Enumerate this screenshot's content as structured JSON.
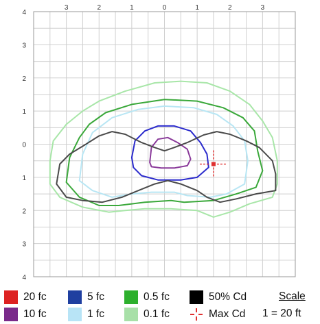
{
  "chart_data": {
    "type": "isofootcandle_plot",
    "x_ticks": [
      "3",
      "2",
      "1",
      "0",
      "1",
      "2",
      "3"
    ],
    "y_ticks": [
      "4",
      "3",
      "2",
      "1",
      "0",
      "1",
      "2",
      "3",
      "4"
    ],
    "xlim": [
      -4,
      4
    ],
    "ylim": [
      -4,
      4
    ],
    "grid": "on",
    "contours": [
      {
        "name": "0.1 fc",
        "color": "#a8e6a8",
        "points": [
          [
            -3.5,
            -1.2
          ],
          [
            -3.5,
            -0.5
          ],
          [
            -3.4,
            0.1
          ],
          [
            -3.0,
            0.6
          ],
          [
            -2.5,
            1.0
          ],
          [
            -2.0,
            1.3
          ],
          [
            -1.2,
            1.6
          ],
          [
            -0.3,
            1.85
          ],
          [
            0.5,
            1.9
          ],
          [
            1.3,
            1.85
          ],
          [
            2.0,
            1.6
          ],
          [
            2.6,
            1.2
          ],
          [
            3.0,
            0.7
          ],
          [
            3.3,
            0.2
          ],
          [
            3.45,
            -0.5
          ],
          [
            3.45,
            -1.2
          ],
          [
            3.3,
            -1.6
          ],
          [
            2.6,
            -1.8
          ],
          [
            2.0,
            -2.05
          ],
          [
            1.5,
            -2.2
          ],
          [
            1.0,
            -2.0
          ],
          [
            0.2,
            -1.95
          ],
          [
            -0.6,
            -1.95
          ],
          [
            -1.2,
            -2.0
          ],
          [
            -1.7,
            -2.05
          ],
          [
            -2.5,
            -1.9
          ],
          [
            -3.2,
            -1.6
          ],
          [
            -3.5,
            -1.2
          ]
        ]
      },
      {
        "name": "0.5 fc",
        "color": "#3aa83a",
        "points": [
          [
            -3.0,
            -1.15
          ],
          [
            -2.9,
            -0.4
          ],
          [
            -2.6,
            0.2
          ],
          [
            -2.3,
            0.6
          ],
          [
            -1.8,
            0.95
          ],
          [
            -1.0,
            1.2
          ],
          [
            0.0,
            1.35
          ],
          [
            1.0,
            1.3
          ],
          [
            1.8,
            1.1
          ],
          [
            2.4,
            0.8
          ],
          [
            2.75,
            0.4
          ],
          [
            2.85,
            -0.2
          ],
          [
            3.0,
            -0.8
          ],
          [
            2.8,
            -1.3
          ],
          [
            2.2,
            -1.5
          ],
          [
            1.5,
            -1.7
          ],
          [
            0.6,
            -1.75
          ],
          [
            0.2,
            -1.7
          ],
          [
            -0.6,
            -1.75
          ],
          [
            -1.4,
            -1.85
          ],
          [
            -2.0,
            -1.85
          ],
          [
            -2.6,
            -1.6
          ],
          [
            -3.0,
            -1.15
          ]
        ]
      },
      {
        "name": "1 fc",
        "color": "#b8e6f4",
        "points": [
          [
            -2.6,
            -1.1
          ],
          [
            -2.5,
            -0.3
          ],
          [
            -2.2,
            0.35
          ],
          [
            -1.6,
            0.8
          ],
          [
            -0.8,
            1.05
          ],
          [
            0.0,
            1.15
          ],
          [
            0.9,
            1.1
          ],
          [
            1.6,
            0.9
          ],
          [
            2.1,
            0.55
          ],
          [
            2.45,
            0.1
          ],
          [
            2.55,
            -0.5
          ],
          [
            2.45,
            -1.2
          ],
          [
            1.9,
            -1.5
          ],
          [
            1.4,
            -1.6
          ],
          [
            0.7,
            -1.55
          ],
          [
            0.3,
            -1.45
          ],
          [
            -0.4,
            -1.45
          ],
          [
            -1.0,
            -1.5
          ],
          [
            -1.6,
            -1.6
          ],
          [
            -2.2,
            -1.4
          ],
          [
            -2.6,
            -1.1
          ]
        ]
      },
      {
        "name": "5 fc",
        "color": "#2a2acc",
        "points": [
          [
            -1.0,
            -0.4
          ],
          [
            -0.9,
            0.1
          ],
          [
            -0.6,
            0.4
          ],
          [
            -0.2,
            0.55
          ],
          [
            0.3,
            0.55
          ],
          [
            0.8,
            0.4
          ],
          [
            1.1,
            0.05
          ],
          [
            1.3,
            -0.3
          ],
          [
            1.35,
            -0.7
          ],
          [
            1.0,
            -1.0
          ],
          [
            0.5,
            -1.08
          ],
          [
            -0.2,
            -1.08
          ],
          [
            -0.7,
            -0.95
          ],
          [
            -0.95,
            -0.7
          ],
          [
            -1.0,
            -0.4
          ]
        ]
      },
      {
        "name": "10 fc",
        "color": "#8a3a9a",
        "points": [
          [
            -0.45,
            -0.55
          ],
          [
            -0.4,
            -0.1
          ],
          [
            -0.2,
            0.15
          ],
          [
            0.1,
            0.2
          ],
          [
            0.4,
            0.05
          ],
          [
            0.7,
            -0.15
          ],
          [
            0.8,
            -0.45
          ],
          [
            0.7,
            -0.65
          ],
          [
            0.3,
            -0.72
          ],
          [
            -0.1,
            -0.72
          ],
          [
            -0.4,
            -0.68
          ],
          [
            -0.45,
            -0.55
          ]
        ]
      },
      {
        "name": "50% Cd",
        "color": "#4a4a4a",
        "points": [
          [
            -3.3,
            -1.2
          ],
          [
            -3.2,
            -0.6
          ],
          [
            -2.9,
            -0.3
          ],
          [
            -2.4,
            0.0
          ],
          [
            -2.0,
            0.25
          ],
          [
            -1.6,
            0.38
          ],
          [
            -1.2,
            0.3
          ],
          [
            -0.7,
            0.05
          ],
          [
            -0.3,
            -0.1
          ],
          [
            0.0,
            -0.2
          ],
          [
            0.3,
            -0.1
          ],
          [
            0.7,
            0.05
          ],
          [
            1.2,
            0.28
          ],
          [
            1.6,
            0.38
          ],
          [
            2.0,
            0.3
          ],
          [
            2.5,
            0.1
          ],
          [
            2.9,
            -0.1
          ],
          [
            3.3,
            -0.5
          ],
          [
            3.4,
            -0.9
          ],
          [
            3.4,
            -1.4
          ],
          [
            2.8,
            -1.5
          ],
          [
            2.2,
            -1.65
          ],
          [
            1.7,
            -1.75
          ],
          [
            1.3,
            -1.6
          ],
          [
            1.0,
            -1.4
          ],
          [
            0.5,
            -1.2
          ],
          [
            0.1,
            -1.1
          ],
          [
            -0.3,
            -1.2
          ],
          [
            -0.8,
            -1.4
          ],
          [
            -1.3,
            -1.6
          ],
          [
            -1.9,
            -1.75
          ],
          [
            -2.5,
            -1.7
          ],
          [
            -3.0,
            -1.6
          ],
          [
            -3.3,
            -1.2
          ]
        ]
      }
    ],
    "max_cd": {
      "x": 1.5,
      "y": -0.6,
      "color": "#e03030"
    },
    "legend": [
      {
        "label": "20 fc",
        "color": "#dd2222",
        "type": "swatch"
      },
      {
        "label": "5 fc",
        "color": "#1f3fa0",
        "type": "swatch"
      },
      {
        "label": "0.5 fc",
        "color": "#2db02d",
        "type": "swatch"
      },
      {
        "label": "50% Cd",
        "color": "#000000",
        "type": "swatch"
      },
      {
        "label": "10 fc",
        "color": "#7a2a8a",
        "type": "swatch"
      },
      {
        "label": "1 fc",
        "color": "#b8e4f6",
        "type": "swatch"
      },
      {
        "label": "0.1 fc",
        "color": "#a8e0a8",
        "type": "swatch"
      },
      {
        "label": "Max Cd",
        "color": "#e03030",
        "type": "crosshair"
      }
    ],
    "scale": {
      "title": "Scale",
      "value": "1 = 20 ft"
    }
  }
}
